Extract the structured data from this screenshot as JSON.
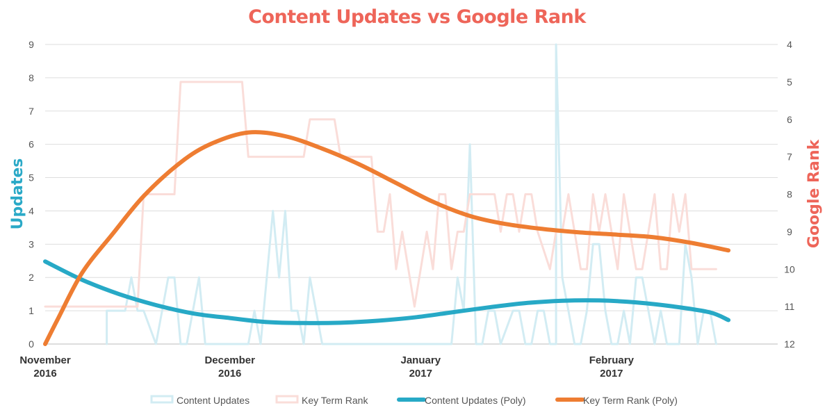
{
  "chart_data": {
    "type": "line",
    "title": "Content Updates vs Google Rank",
    "ylabel": "Updates",
    "y2label": "Google Rank",
    "ylim": [
      0,
      9
    ],
    "y2lim": [
      4,
      12
    ],
    "y2_reversed": true,
    "y_ticks": [
      "0",
      "1",
      "2",
      "3",
      "4",
      "5",
      "6",
      "7",
      "8",
      "9"
    ],
    "y2_ticks": [
      "4",
      "5",
      "6",
      "7",
      "8",
      "9",
      "10",
      "11",
      "12"
    ],
    "x_ticks": [
      {
        "line1": "November",
        "line2": "2016",
        "date": "2016-11-01"
      },
      {
        "line1": "December",
        "line2": "2016",
        "date": "2016-12-01"
      },
      {
        "line1": "January",
        "line2": "2017",
        "date": "2017-01-01"
      },
      {
        "line1": "February",
        "line2": "2017",
        "date": "2017-02-01"
      }
    ],
    "x_range": [
      "2016-11-01",
      "2017-02-28"
    ],
    "grid": true,
    "legend_position": "bottom",
    "colors": {
      "title": "#EE6559",
      "updates_axis": "#2AA9C7",
      "rank_axis": "#EE6559",
      "updates_raw": "#D2ECF3",
      "rank_raw": "#FADDD9",
      "updates_poly": "#27A9C6",
      "rank_poly": "#EE7D32",
      "grid": "#DDDDDD"
    },
    "series": [
      {
        "name": "Content Updates",
        "axis": "left",
        "style": "raw",
        "points": [
          [
            "2016-11-11",
            0
          ],
          [
            "2016-11-11",
            1
          ],
          [
            "2016-11-14",
            1
          ],
          [
            "2016-11-15",
            2
          ],
          [
            "2016-11-16",
            1
          ],
          [
            "2016-11-17",
            1
          ],
          [
            "2016-11-19",
            0
          ],
          [
            "2016-11-21",
            2
          ],
          [
            "2016-11-22",
            2
          ],
          [
            "2016-11-23",
            0
          ],
          [
            "2016-11-24",
            0
          ],
          [
            "2016-11-26",
            2
          ],
          [
            "2016-11-27",
            0
          ],
          [
            "2016-12-01",
            0
          ],
          [
            "2016-12-04",
            0
          ],
          [
            "2016-12-05",
            1
          ],
          [
            "2016-12-06",
            0
          ],
          [
            "2016-12-08",
            4
          ],
          [
            "2016-12-09",
            2
          ],
          [
            "2016-12-10",
            4
          ],
          [
            "2016-12-11",
            1
          ],
          [
            "2016-12-12",
            1
          ],
          [
            "2016-12-13",
            0
          ],
          [
            "2016-12-14",
            2
          ],
          [
            "2016-12-16",
            0
          ],
          [
            "2016-12-17",
            0
          ],
          [
            "2017-01-01",
            0
          ],
          [
            "2017-01-06",
            0
          ],
          [
            "2017-01-07",
            2
          ],
          [
            "2017-01-08",
            1
          ],
          [
            "2017-01-09",
            6
          ],
          [
            "2017-01-10",
            0
          ],
          [
            "2017-01-11",
            0
          ],
          [
            "2017-01-12",
            1
          ],
          [
            "2017-01-13",
            1
          ],
          [
            "2017-01-14",
            0
          ],
          [
            "2017-01-16",
            1
          ],
          [
            "2017-01-17",
            1
          ],
          [
            "2017-01-18",
            0
          ],
          [
            "2017-01-19",
            0
          ],
          [
            "2017-01-20",
            1
          ],
          [
            "2017-01-21",
            1
          ],
          [
            "2017-01-22",
            0
          ],
          [
            "2017-01-23",
            0
          ],
          [
            "2017-01-23",
            9
          ],
          [
            "2017-01-24",
            2
          ],
          [
            "2017-01-25",
            1
          ],
          [
            "2017-01-26",
            0
          ],
          [
            "2017-01-27",
            0
          ],
          [
            "2017-01-28",
            1
          ],
          [
            "2017-01-29",
            3
          ],
          [
            "2017-01-30",
            3
          ],
          [
            "2017-01-31",
            1
          ],
          [
            "2017-02-01",
            0
          ],
          [
            "2017-02-02",
            0
          ],
          [
            "2017-02-03",
            1
          ],
          [
            "2017-02-04",
            0
          ],
          [
            "2017-02-05",
            2
          ],
          [
            "2017-02-06",
            2
          ],
          [
            "2017-02-07",
            1
          ],
          [
            "2017-02-08",
            0
          ],
          [
            "2017-02-09",
            1
          ],
          [
            "2017-02-10",
            0
          ],
          [
            "2017-02-11",
            0
          ],
          [
            "2017-02-12",
            0
          ],
          [
            "2017-02-13",
            3
          ],
          [
            "2017-02-14",
            2
          ],
          [
            "2017-02-15",
            0
          ],
          [
            "2017-02-16",
            1
          ],
          [
            "2017-02-17",
            1
          ],
          [
            "2017-02-18",
            0
          ]
        ]
      },
      {
        "name": "Key Term Rank",
        "axis": "right",
        "style": "raw",
        "points": [
          [
            "2016-11-01",
            11
          ],
          [
            "2016-11-16",
            11
          ],
          [
            "2016-11-17",
            8
          ],
          [
            "2016-11-22",
            8
          ],
          [
            "2016-11-23",
            5
          ],
          [
            "2016-12-03",
            5
          ],
          [
            "2016-12-04",
            7
          ],
          [
            "2016-12-13",
            7
          ],
          [
            "2016-12-14",
            6
          ],
          [
            "2016-12-18",
            6
          ],
          [
            "2016-12-19",
            7
          ],
          [
            "2016-12-24",
            7
          ],
          [
            "2016-12-25",
            9
          ],
          [
            "2016-12-26",
            9
          ],
          [
            "2016-12-27",
            8
          ],
          [
            "2016-12-28",
            10
          ],
          [
            "2016-12-29",
            9
          ],
          [
            "2016-12-30",
            10
          ],
          [
            "2016-12-31",
            11
          ],
          [
            "2017-01-01",
            10
          ],
          [
            "2017-01-02",
            9
          ],
          [
            "2017-01-03",
            10
          ],
          [
            "2017-01-04",
            8
          ],
          [
            "2017-01-05",
            8
          ],
          [
            "2017-01-06",
            10
          ],
          [
            "2017-01-07",
            9
          ],
          [
            "2017-01-08",
            9
          ],
          [
            "2017-01-09",
            8
          ],
          [
            "2017-01-13",
            8
          ],
          [
            "2017-01-14",
            9
          ],
          [
            "2017-01-15",
            8
          ],
          [
            "2017-01-16",
            8
          ],
          [
            "2017-01-17",
            9
          ],
          [
            "2017-01-18",
            8
          ],
          [
            "2017-01-19",
            8
          ],
          [
            "2017-01-20",
            9
          ],
          [
            "2017-01-22",
            10
          ],
          [
            "2017-01-23",
            9
          ],
          [
            "2017-01-24",
            9
          ],
          [
            "2017-01-25",
            8
          ],
          [
            "2017-01-26",
            9
          ],
          [
            "2017-01-27",
            10
          ],
          [
            "2017-01-28",
            10
          ],
          [
            "2017-01-29",
            8
          ],
          [
            "2017-01-30",
            9
          ],
          [
            "2017-01-31",
            8
          ],
          [
            "2017-02-01",
            9
          ],
          [
            "2017-02-02",
            10
          ],
          [
            "2017-02-03",
            8
          ],
          [
            "2017-02-04",
            9
          ],
          [
            "2017-02-05",
            10
          ],
          [
            "2017-02-06",
            10
          ],
          [
            "2017-02-07",
            9
          ],
          [
            "2017-02-08",
            8
          ],
          [
            "2017-02-09",
            10
          ],
          [
            "2017-02-10",
            10
          ],
          [
            "2017-02-11",
            8
          ],
          [
            "2017-02-12",
            9
          ],
          [
            "2017-02-13",
            8
          ],
          [
            "2017-02-14",
            10
          ],
          [
            "2017-02-18",
            10
          ]
        ]
      },
      {
        "name": "Content Updates (Poly)",
        "axis": "left",
        "style": "poly",
        "points": [
          [
            "2016-11-01",
            2.48
          ],
          [
            "2016-11-07",
            1.93
          ],
          [
            "2016-11-13",
            1.5
          ],
          [
            "2016-11-19",
            1.17
          ],
          [
            "2016-11-25",
            0.92
          ],
          [
            "2016-12-01",
            0.78
          ],
          [
            "2016-12-07",
            0.66
          ],
          [
            "2016-12-13",
            0.63
          ],
          [
            "2016-12-19",
            0.64
          ],
          [
            "2016-12-25",
            0.7
          ],
          [
            "2016-12-31",
            0.8
          ],
          [
            "2017-01-06",
            0.95
          ],
          [
            "2017-01-12",
            1.1
          ],
          [
            "2017-01-18",
            1.23
          ],
          [
            "2017-01-24",
            1.3
          ],
          [
            "2017-01-30",
            1.31
          ],
          [
            "2017-02-05",
            1.25
          ],
          [
            "2017-02-11",
            1.13
          ],
          [
            "2017-02-17",
            0.95
          ],
          [
            "2017-02-20",
            0.72
          ]
        ]
      },
      {
        "name": "Key Term Rank (Poly)",
        "axis": "right",
        "style": "poly",
        "points": [
          [
            "2016-11-01",
            12.0
          ],
          [
            "2016-11-03",
            11.35
          ],
          [
            "2016-11-07",
            10.1
          ],
          [
            "2016-11-12",
            9.05
          ],
          [
            "2016-11-17",
            8.05
          ],
          [
            "2016-11-23",
            7.15
          ],
          [
            "2016-11-28",
            6.65
          ],
          [
            "2016-12-04",
            6.35
          ],
          [
            "2016-12-10",
            6.45
          ],
          [
            "2016-12-16",
            6.78
          ],
          [
            "2016-12-22",
            7.2
          ],
          [
            "2016-12-28",
            7.7
          ],
          [
            "2017-01-03",
            8.2
          ],
          [
            "2017-01-09",
            8.58
          ],
          [
            "2017-01-15",
            8.8
          ],
          [
            "2017-01-21",
            8.93
          ],
          [
            "2017-01-27",
            9.02
          ],
          [
            "2017-02-02",
            9.08
          ],
          [
            "2017-02-08",
            9.15
          ],
          [
            "2017-02-14",
            9.3
          ],
          [
            "2017-02-20",
            9.5
          ]
        ]
      }
    ]
  }
}
